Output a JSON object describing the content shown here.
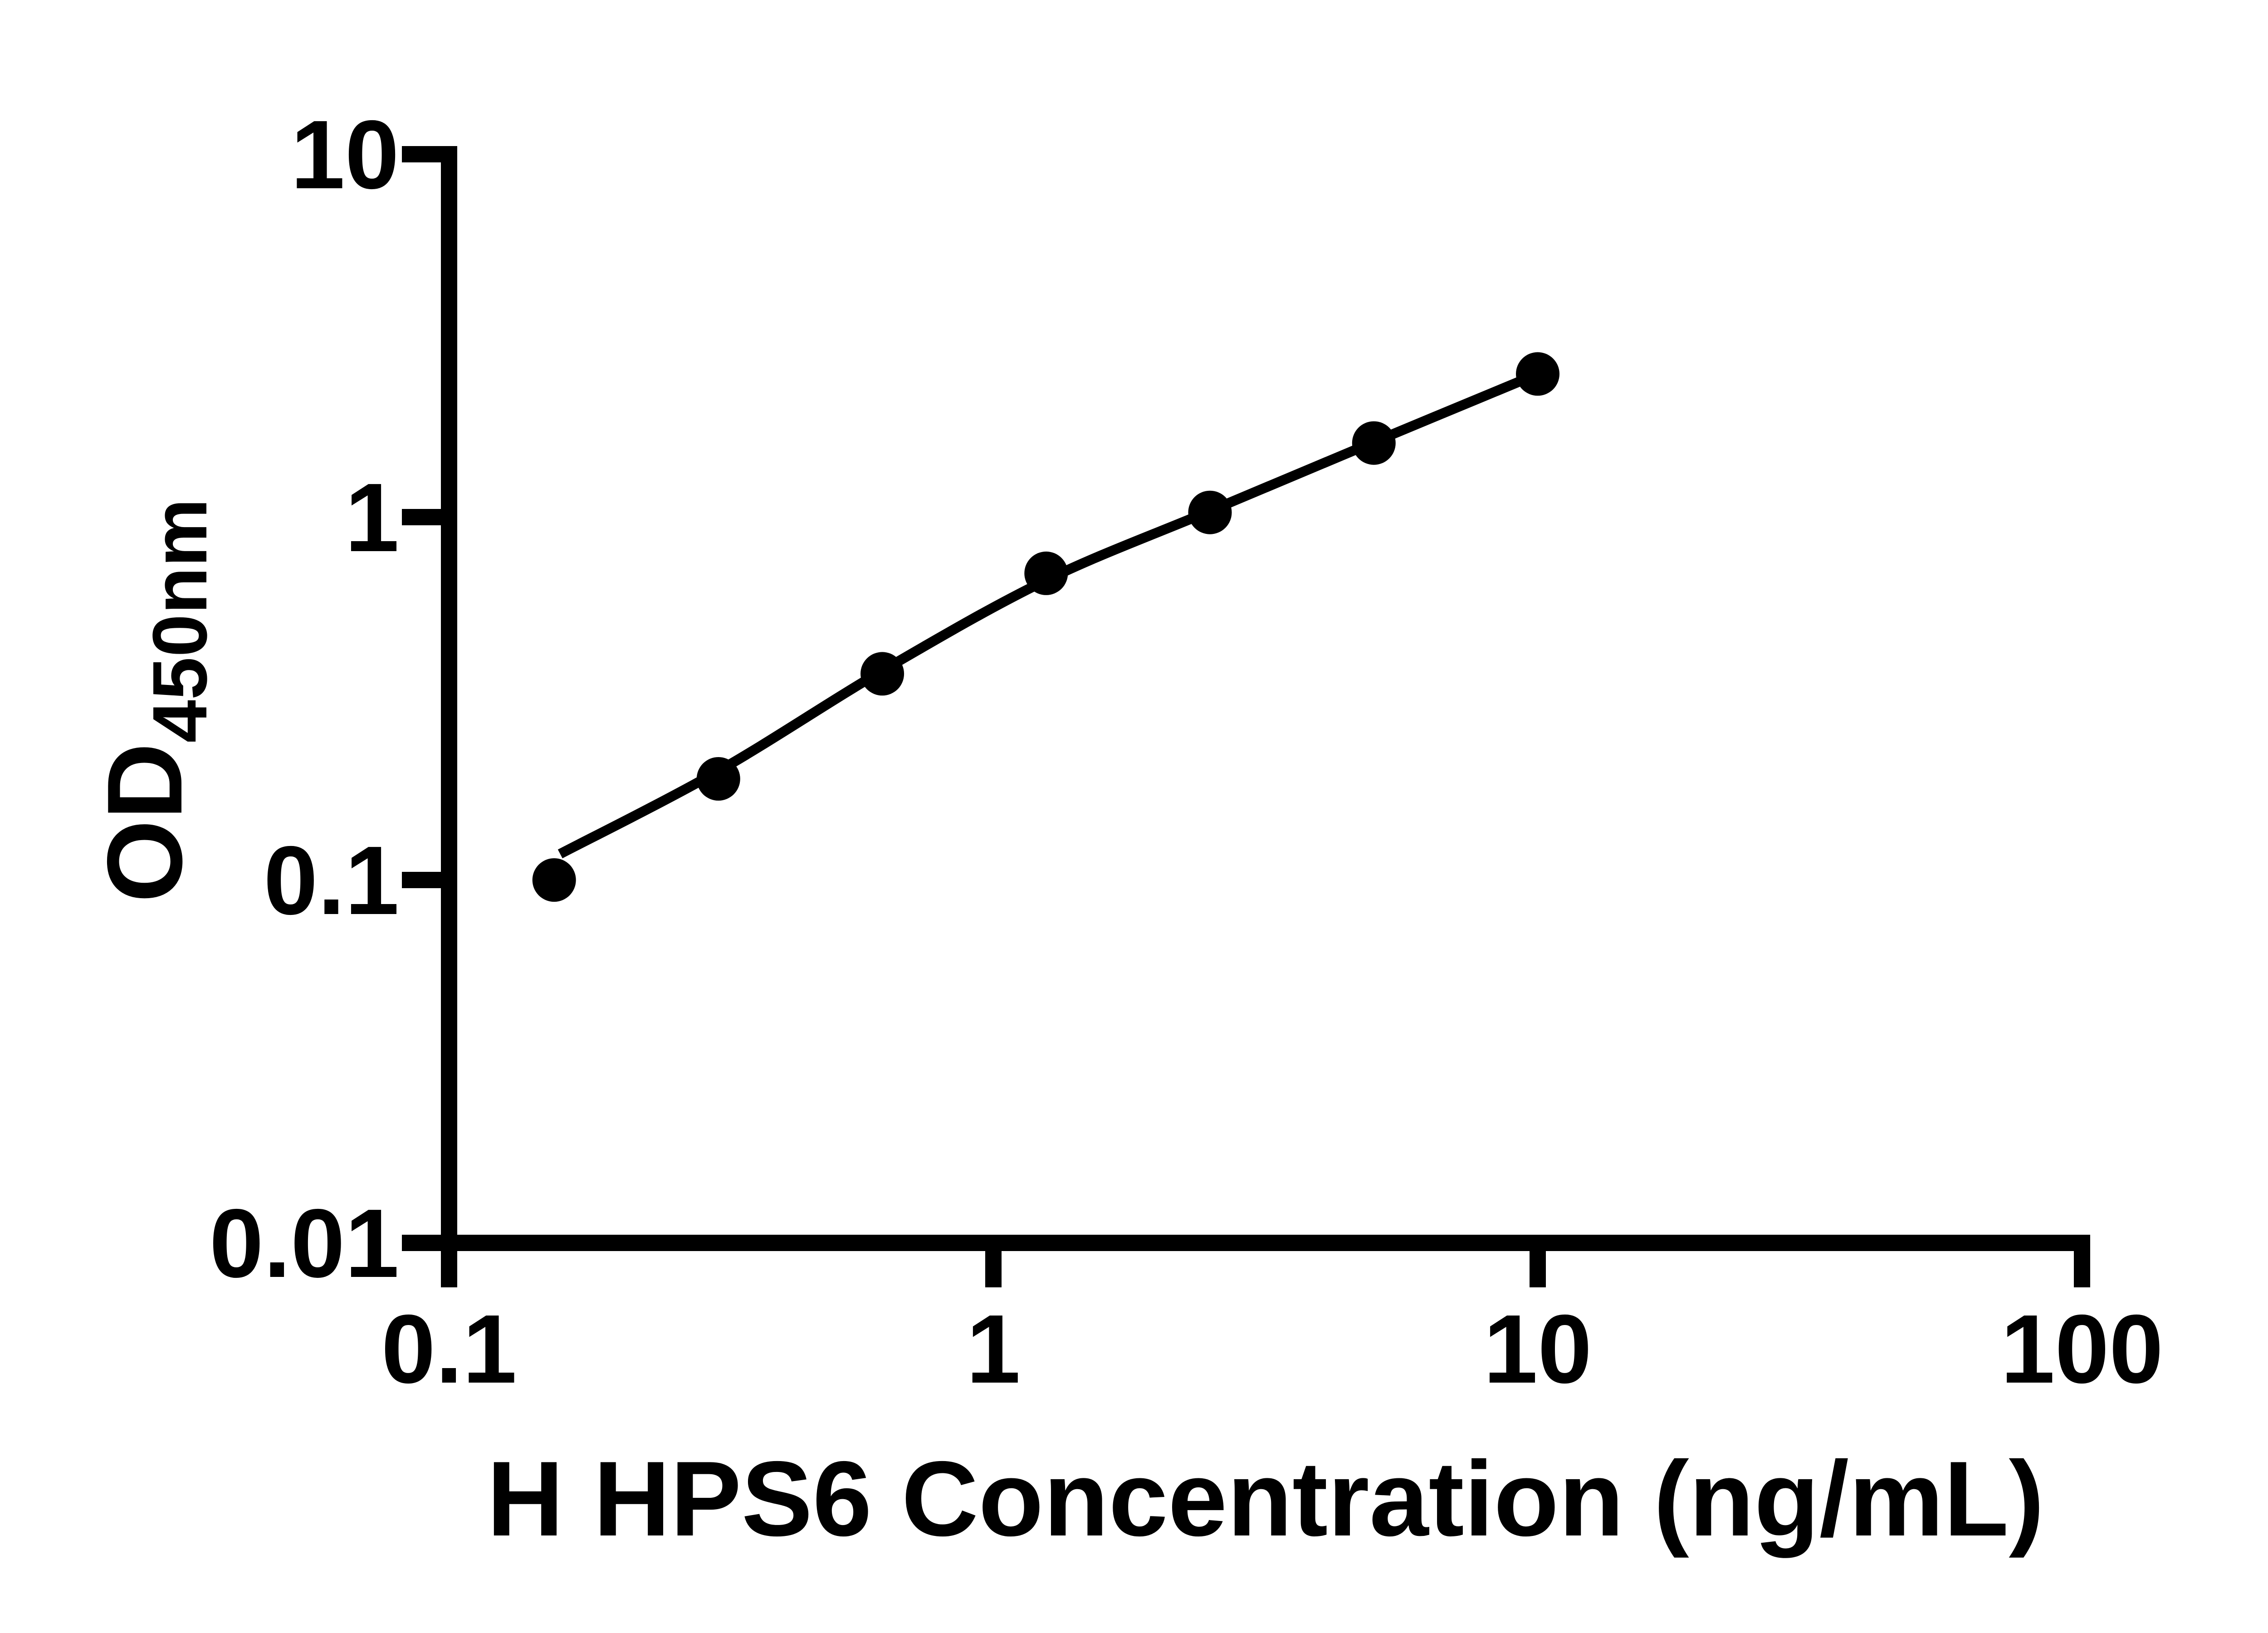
{
  "figure": {
    "background_color": "#ffffff",
    "ink_color": "#000000"
  },
  "chart_data": {
    "type": "scatter",
    "title": "",
    "xlabel": "H HPS6 Concentration (ng/mL)",
    "ylabel_main": "OD",
    "ylabel_sub": "450nm",
    "x_scale": "log",
    "y_scale": "log",
    "xlim": [
      0.1,
      100
    ],
    "ylim": [
      0.01,
      10
    ],
    "x_ticks": [
      0.1,
      1,
      10,
      100
    ],
    "x_tick_labels": [
      "0.1",
      "1",
      "10",
      "100"
    ],
    "y_ticks": [
      10,
      1,
      0.1,
      0.01
    ],
    "y_tick_labels": [
      "10",
      "1",
      "0.1",
      "0.01"
    ],
    "grid": false,
    "legend_position": "none",
    "series": [
      {
        "name": "standard-points",
        "kind": "scatter",
        "marker": "circle",
        "color": "#000000",
        "x": [
          0.156,
          0.3125,
          0.625,
          1.25,
          2.5,
          5,
          10
        ],
        "y": [
          0.1,
          0.19,
          0.37,
          0.7,
          1.03,
          1.6,
          2.48
        ]
      },
      {
        "name": "fit-curve",
        "kind": "line",
        "color": "#000000",
        "x": [
          0.16,
          0.313,
          0.63,
          1.25,
          2.5,
          5.0,
          10.0
        ],
        "y": [
          0.118,
          0.2,
          0.38,
          0.67,
          1.04,
          1.61,
          2.48
        ]
      }
    ]
  }
}
